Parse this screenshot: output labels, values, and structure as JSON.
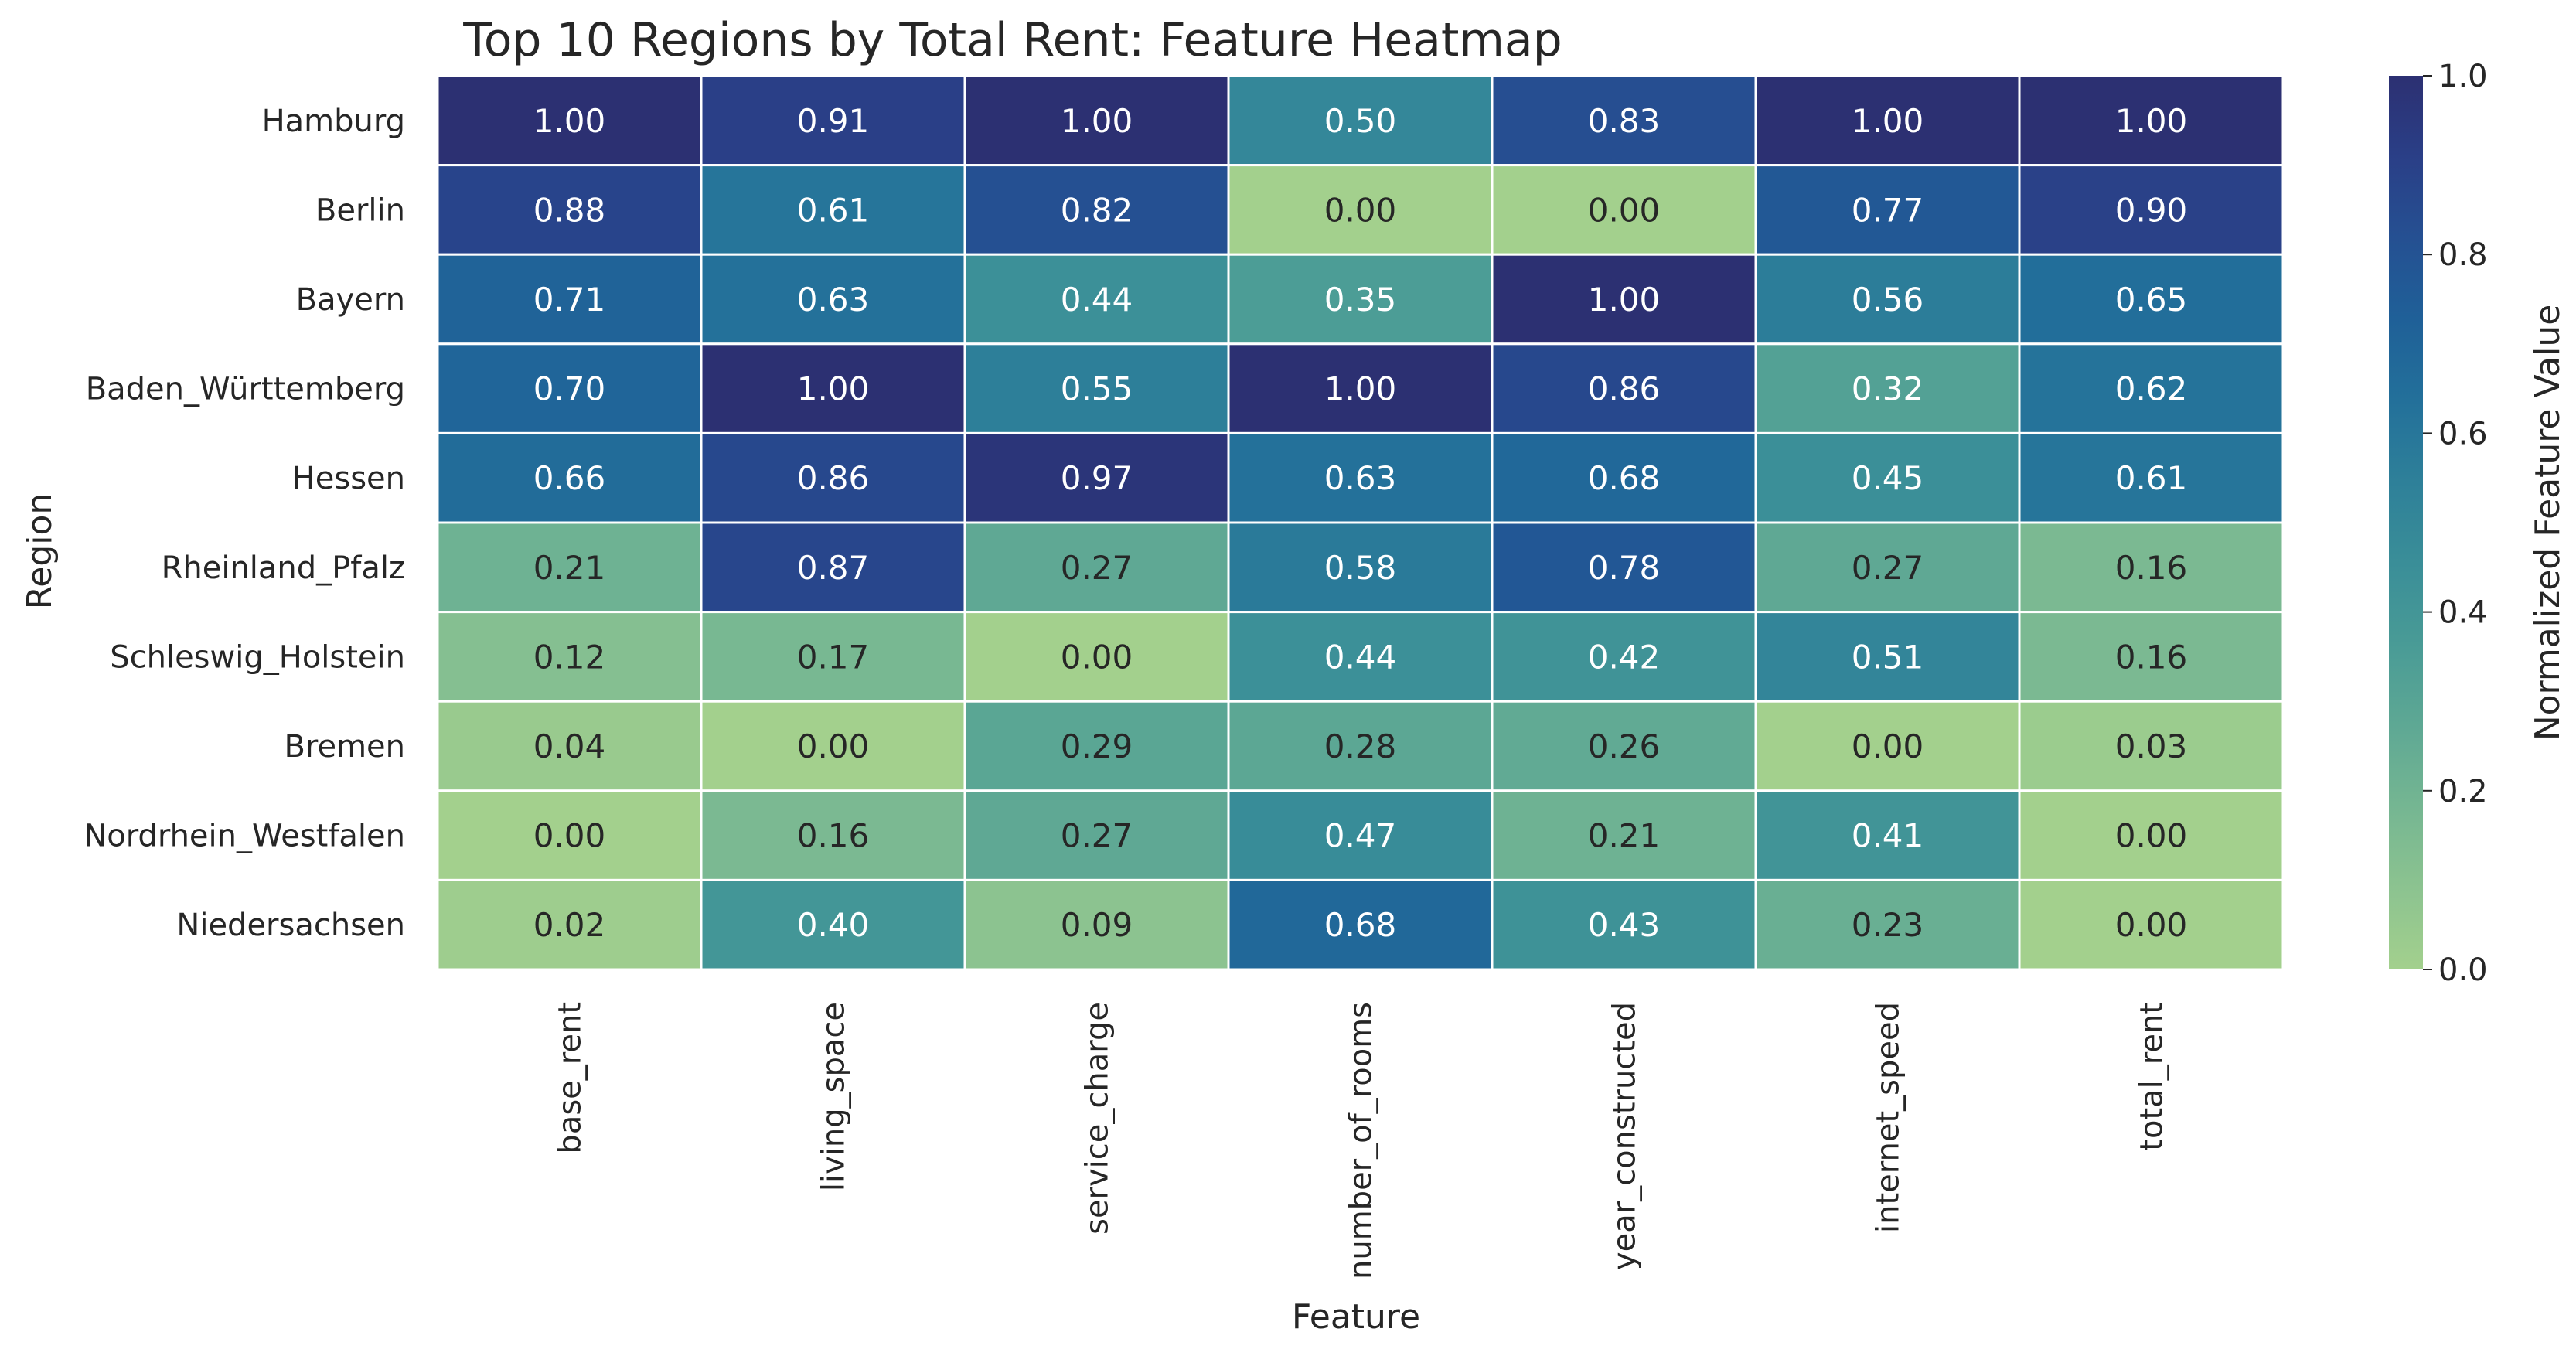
{
  "chart_data": {
    "type": "heatmap",
    "title": "Top 10 Regions by Total Rent: Feature Heatmap",
    "xlabel": "Feature",
    "ylabel": "Region",
    "colorbar_label": "Normalized Feature Value",
    "colorbar_ticks": [
      "0.0",
      "0.2",
      "0.4",
      "0.6",
      "0.8",
      "1.0"
    ],
    "colorbar_range": [
      0,
      1
    ],
    "grid": false,
    "legend": "colorbar-right",
    "columns": [
      "base_rent",
      "living_space",
      "service_charge",
      "number_of_rooms",
      "year_constructed",
      "internet_speed",
      "total_rent"
    ],
    "rows": [
      "Hamburg",
      "Berlin",
      "Bayern",
      "Baden_Württemberg",
      "Hessen",
      "Rheinland_Pfalz",
      "Schleswig_Holstein",
      "Bremen",
      "Nordrhein_Westfalen",
      "Niedersachsen"
    ],
    "values": [
      [
        1.0,
        0.91,
        1.0,
        0.5,
        0.83,
        1.0,
        1.0
      ],
      [
        0.88,
        0.61,
        0.82,
        0.0,
        0.0,
        0.77,
        0.9
      ],
      [
        0.71,
        0.63,
        0.44,
        0.35,
        1.0,
        0.56,
        0.65
      ],
      [
        0.7,
        1.0,
        0.55,
        1.0,
        0.86,
        0.32,
        0.62
      ],
      [
        0.66,
        0.86,
        0.97,
        0.63,
        0.68,
        0.45,
        0.61
      ],
      [
        0.21,
        0.87,
        0.27,
        0.58,
        0.78,
        0.27,
        0.16
      ],
      [
        0.12,
        0.17,
        0.0,
        0.44,
        0.42,
        0.51,
        0.16
      ],
      [
        0.04,
        0.0,
        0.29,
        0.28,
        0.26,
        0.0,
        0.03
      ],
      [
        0.0,
        0.16,
        0.27,
        0.47,
        0.21,
        0.41,
        0.0
      ],
      [
        0.02,
        0.4,
        0.09,
        0.68,
        0.43,
        0.23,
        0.0
      ]
    ],
    "colormap": "crest",
    "colormap_stops": [
      "#a3d08d",
      "#8cc390",
      "#75b692",
      "#5ea894",
      "#499b96",
      "#3a8e98",
      "#2e8099",
      "#23709a",
      "#1f6098",
      "#255092",
      "#2a3f87",
      "#2c3072"
    ]
  }
}
